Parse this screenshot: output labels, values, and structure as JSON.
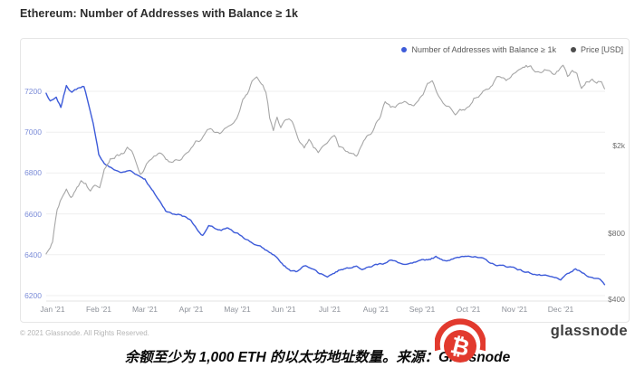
{
  "title": "Ethereum: Number of Addresses with Balance ≥ 1k",
  "legend": {
    "addresses": "Number of Addresses with Balance ≥ 1k",
    "price": "Price [USD]"
  },
  "colors": {
    "addresses_line": "#3d5bd9",
    "price_line": "#a6a6a6",
    "price_dot": "#4d4d4d",
    "left_tick_label": "#7b8cd8",
    "right_tick_label": "#6f6f6f",
    "x_tick_label": "#8e929a",
    "grid": "#efefef",
    "axis_line": "#e3e3e3",
    "logo_red": "#e23a2e"
  },
  "footer": {
    "copyright": "© 2021 Glassnode. All Rights Reserved.",
    "brand": "glassnode"
  },
  "caption": "余额至少为 1,000 ETH 的以太坊地址数量。来源：Glassnode",
  "logo": {
    "name": "bitcoin-logo",
    "symbol": "₿"
  },
  "chart_data": {
    "type": "line",
    "title": "Ethereum: Number of Addresses with Balance ≥ 1k",
    "x_unit": "months since 2021-01-01",
    "x_tick_labels": [
      "Jan '21",
      "Feb '21",
      "Mar '21",
      "Apr '21",
      "May '21",
      "Jun '21",
      "Jul '21",
      "Aug '21",
      "Sep '21",
      "Oct '21",
      "Nov '21",
      "Dec '21"
    ],
    "grid": "horizontal-only",
    "legend_position": "top-right",
    "left_axis": {
      "ticks": [
        7200,
        7000,
        6800,
        6600,
        6400,
        6200
      ],
      "range_hint": [
        6150,
        7300
      ],
      "scale": "linear"
    },
    "right_axis": {
      "tick_labels": [
        "$2k",
        "$800",
        "$400"
      ],
      "tick_values": [
        2000,
        800,
        400
      ],
      "scale": "log"
    },
    "series": [
      {
        "name": "Number of Addresses with Balance ≥ 1k",
        "axis": "left",
        "color": "#3d5bd9",
        "points": [
          [
            -0.14,
            7190
          ],
          [
            -0.05,
            7150
          ],
          [
            0.08,
            7165
          ],
          [
            0.18,
            7120
          ],
          [
            0.3,
            7230
          ],
          [
            0.42,
            7195
          ],
          [
            0.55,
            7215
          ],
          [
            0.68,
            7225
          ],
          [
            0.78,
            7140
          ],
          [
            0.88,
            7040
          ],
          [
            1.0,
            6890
          ],
          [
            1.12,
            6848
          ],
          [
            1.3,
            6820
          ],
          [
            1.5,
            6802
          ],
          [
            1.68,
            6812
          ],
          [
            1.85,
            6790
          ],
          [
            2.0,
            6772
          ],
          [
            2.15,
            6718
          ],
          [
            2.3,
            6668
          ],
          [
            2.45,
            6618
          ],
          [
            2.6,
            6600
          ],
          [
            2.75,
            6598
          ],
          [
            2.9,
            6582
          ],
          [
            3.0,
            6568
          ],
          [
            3.12,
            6528
          ],
          [
            3.25,
            6495
          ],
          [
            3.38,
            6540
          ],
          [
            3.52,
            6528
          ],
          [
            3.65,
            6518
          ],
          [
            3.8,
            6528
          ],
          [
            3.95,
            6505
          ],
          [
            4.1,
            6492
          ],
          [
            4.3,
            6462
          ],
          [
            4.5,
            6438
          ],
          [
            4.7,
            6412
          ],
          [
            4.85,
            6390
          ],
          [
            5.0,
            6345
          ],
          [
            5.15,
            6322
          ],
          [
            5.3,
            6318
          ],
          [
            5.45,
            6345
          ],
          [
            5.6,
            6338
          ],
          [
            5.78,
            6310
          ],
          [
            5.95,
            6296
          ],
          [
            6.1,
            6312
          ],
          [
            6.25,
            6330
          ],
          [
            6.4,
            6338
          ],
          [
            6.55,
            6350
          ],
          [
            6.7,
            6332
          ],
          [
            6.85,
            6338
          ],
          [
            7.0,
            6352
          ],
          [
            7.15,
            6358
          ],
          [
            7.3,
            6375
          ],
          [
            7.48,
            6362
          ],
          [
            7.65,
            6348
          ],
          [
            7.82,
            6358
          ],
          [
            8.0,
            6368
          ],
          [
            8.15,
            6378
          ],
          [
            8.3,
            6390
          ],
          [
            8.45,
            6378
          ],
          [
            8.6,
            6372
          ],
          [
            8.8,
            6388
          ],
          [
            9.0,
            6400
          ],
          [
            9.18,
            6388
          ],
          [
            9.35,
            6375
          ],
          [
            9.55,
            6352
          ],
          [
            9.75,
            6345
          ],
          [
            10.0,
            6338
          ],
          [
            10.2,
            6318
          ],
          [
            10.4,
            6308
          ],
          [
            10.6,
            6298
          ],
          [
            10.8,
            6288
          ],
          [
            11.0,
            6278
          ],
          [
            11.18,
            6308
          ],
          [
            11.32,
            6328
          ],
          [
            11.5,
            6308
          ],
          [
            11.68,
            6288
          ],
          [
            11.85,
            6282
          ],
          [
            11.95,
            6258
          ]
        ]
      },
      {
        "name": "Price [USD]",
        "axis": "right",
        "color": "#a6a6a6",
        "points": [
          [
            -0.14,
            640
          ],
          [
            -0.05,
            700
          ],
          [
            0.0,
            730
          ],
          [
            0.1,
            1000
          ],
          [
            0.2,
            1150
          ],
          [
            0.3,
            1270
          ],
          [
            0.4,
            1180
          ],
          [
            0.5,
            1250
          ],
          [
            0.62,
            1390
          ],
          [
            0.72,
            1360
          ],
          [
            0.82,
            1240
          ],
          [
            0.92,
            1330
          ],
          [
            1.02,
            1320
          ],
          [
            1.12,
            1600
          ],
          [
            1.25,
            1760
          ],
          [
            1.4,
            1810
          ],
          [
            1.52,
            1850
          ],
          [
            1.62,
            1940
          ],
          [
            1.72,
            1860
          ],
          [
            1.82,
            1620
          ],
          [
            1.9,
            1460
          ],
          [
            2.0,
            1570
          ],
          [
            2.1,
            1720
          ],
          [
            2.2,
            1790
          ],
          [
            2.32,
            1830
          ],
          [
            2.42,
            1760
          ],
          [
            2.52,
            1680
          ],
          [
            2.64,
            1720
          ],
          [
            2.76,
            1690
          ],
          [
            2.9,
            1840
          ],
          [
            3.0,
            1970
          ],
          [
            3.1,
            2080
          ],
          [
            3.2,
            2130
          ],
          [
            3.32,
            2380
          ],
          [
            3.42,
            2450
          ],
          [
            3.52,
            2320
          ],
          [
            3.62,
            2230
          ],
          [
            3.72,
            2360
          ],
          [
            3.82,
            2420
          ],
          [
            3.92,
            2600
          ],
          [
            4.02,
            2770
          ],
          [
            4.12,
            3200
          ],
          [
            4.22,
            3450
          ],
          [
            4.32,
            3900
          ],
          [
            4.42,
            4080
          ],
          [
            4.52,
            3850
          ],
          [
            4.62,
            3520
          ],
          [
            4.7,
            2700
          ],
          [
            4.78,
            2320
          ],
          [
            4.86,
            2680
          ],
          [
            4.94,
            2420
          ],
          [
            5.02,
            2630
          ],
          [
            5.12,
            2700
          ],
          [
            5.22,
            2480
          ],
          [
            5.35,
            2100
          ],
          [
            5.45,
            1960
          ],
          [
            5.55,
            2160
          ],
          [
            5.65,
            2000
          ],
          [
            5.75,
            1890
          ],
          [
            5.88,
            2050
          ],
          [
            6.0,
            2120
          ],
          [
            6.1,
            2230
          ],
          [
            6.2,
            2000
          ],
          [
            6.32,
            1930
          ],
          [
            6.45,
            1850
          ],
          [
            6.58,
            1790
          ],
          [
            6.7,
            1990
          ],
          [
            6.8,
            2180
          ],
          [
            6.9,
            2300
          ],
          [
            7.0,
            2550
          ],
          [
            7.1,
            2700
          ],
          [
            7.2,
            3150
          ],
          [
            7.32,
            3020
          ],
          [
            7.42,
            3010
          ],
          [
            7.52,
            3180
          ],
          [
            7.62,
            3240
          ],
          [
            7.72,
            3160
          ],
          [
            7.82,
            3110
          ],
          [
            7.92,
            3260
          ],
          [
            8.02,
            3450
          ],
          [
            8.12,
            3790
          ],
          [
            8.22,
            3950
          ],
          [
            8.32,
            3430
          ],
          [
            8.42,
            3280
          ],
          [
            8.52,
            3060
          ],
          [
            8.62,
            2950
          ],
          [
            8.72,
            2750
          ],
          [
            8.82,
            3000
          ],
          [
            8.92,
            2930
          ],
          [
            9.02,
            3000
          ],
          [
            9.12,
            3300
          ],
          [
            9.22,
            3380
          ],
          [
            9.32,
            3560
          ],
          [
            9.42,
            3680
          ],
          [
            9.52,
            3850
          ],
          [
            9.62,
            4170
          ],
          [
            9.72,
            4080
          ],
          [
            9.82,
            3980
          ],
          [
            9.92,
            4120
          ],
          [
            10.02,
            4290
          ],
          [
            10.12,
            4450
          ],
          [
            10.25,
            4620
          ],
          [
            10.35,
            4560
          ],
          [
            10.45,
            4250
          ],
          [
            10.55,
            4350
          ],
          [
            10.65,
            4450
          ],
          [
            10.75,
            4300
          ],
          [
            10.85,
            4100
          ],
          [
            10.95,
            4350
          ],
          [
            11.05,
            4580
          ],
          [
            11.15,
            4100
          ],
          [
            11.25,
            4350
          ],
          [
            11.35,
            4200
          ],
          [
            11.45,
            3650
          ],
          [
            11.55,
            3900
          ],
          [
            11.68,
            4000
          ],
          [
            11.78,
            3900
          ],
          [
            11.88,
            3950
          ],
          [
            11.95,
            3720
          ]
        ]
      }
    ]
  }
}
